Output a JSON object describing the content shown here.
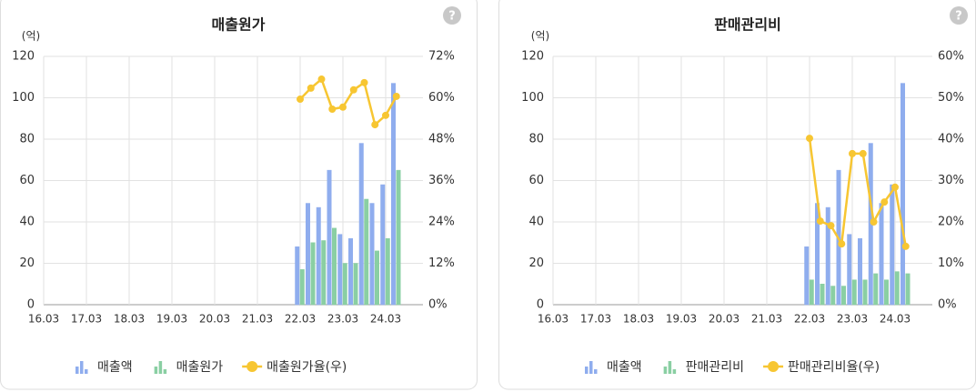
{
  "chart_data": [
    {
      "type": "bar-line",
      "title": "매출원가",
      "y_unit": "(억)",
      "categories": [
        "16.03",
        null,
        null,
        null,
        "17.03",
        null,
        null,
        null,
        "18.03",
        null,
        null,
        null,
        "19.03",
        null,
        null,
        null,
        "20.03",
        null,
        null,
        null,
        "21.03",
        null,
        null,
        null,
        "22.03",
        null,
        null,
        null,
        "23.03",
        null,
        null,
        null,
        "24.03",
        null
      ],
      "series": [
        {
          "name": "매출액",
          "color": "#8fadee",
          "kind": "bar",
          "values": [
            null,
            null,
            null,
            null,
            null,
            null,
            null,
            null,
            null,
            null,
            null,
            null,
            null,
            null,
            null,
            null,
            null,
            null,
            null,
            null,
            null,
            null,
            null,
            null,
            28,
            49,
            47,
            65,
            34,
            32,
            78,
            49,
            58,
            107
          ]
        },
        {
          "name": "매출원가",
          "color": "#8acfa3",
          "kind": "bar",
          "values": [
            null,
            null,
            null,
            null,
            null,
            null,
            null,
            null,
            null,
            null,
            null,
            null,
            null,
            null,
            null,
            null,
            null,
            null,
            null,
            null,
            null,
            null,
            null,
            null,
            17,
            30,
            31,
            37,
            20,
            20,
            51,
            26,
            32,
            65
          ]
        },
        {
          "name": "매출원가율(우)",
          "color": "#f7c632",
          "kind": "line",
          "axis": "y2",
          "values": [
            null,
            null,
            null,
            null,
            null,
            null,
            null,
            null,
            null,
            null,
            null,
            null,
            null,
            null,
            null,
            null,
            null,
            null,
            null,
            null,
            null,
            null,
            null,
            null,
            59.6,
            62.8,
            65.4,
            56.7,
            57.3,
            62.3,
            64.4,
            52.2,
            54.9,
            60.4
          ]
        }
      ],
      "ylim": [
        0,
        120
      ],
      "yticks": [
        0,
        20,
        40,
        60,
        80,
        100,
        120
      ],
      "y2lim": [
        0,
        72
      ],
      "y2ticks": [
        {
          "value": 0,
          "label": "0%"
        },
        {
          "value": 12,
          "label": "12%"
        },
        {
          "value": 24,
          "label": "24%"
        },
        {
          "value": 36,
          "label": "36%"
        },
        {
          "value": 48,
          "label": "48%"
        },
        {
          "value": 60,
          "label": "60%"
        },
        {
          "value": 72,
          "label": "72%"
        }
      ],
      "grid": true
    },
    {
      "type": "bar-line",
      "title": "판매관리비",
      "y_unit": "(억)",
      "categories": [
        "16.03",
        null,
        null,
        null,
        "17.03",
        null,
        null,
        null,
        "18.03",
        null,
        null,
        null,
        "19.03",
        null,
        null,
        null,
        "20.03",
        null,
        null,
        null,
        "21.03",
        null,
        null,
        null,
        "22.03",
        null,
        null,
        null,
        "23.03",
        null,
        null,
        null,
        "24.03",
        null
      ],
      "series": [
        {
          "name": "매출액",
          "color": "#8fadee",
          "kind": "bar",
          "values": [
            null,
            null,
            null,
            null,
            null,
            null,
            null,
            null,
            null,
            null,
            null,
            null,
            null,
            null,
            null,
            null,
            null,
            null,
            null,
            null,
            null,
            null,
            null,
            null,
            28,
            49,
            47,
            65,
            34,
            32,
            78,
            49,
            58,
            107
          ]
        },
        {
          "name": "판매관리비",
          "color": "#8acfa3",
          "kind": "bar",
          "values": [
            null,
            null,
            null,
            null,
            null,
            null,
            null,
            null,
            null,
            null,
            null,
            null,
            null,
            null,
            null,
            null,
            null,
            null,
            null,
            null,
            null,
            null,
            null,
            null,
            12,
            10,
            9,
            9,
            12,
            12,
            15,
            12,
            16,
            15
          ]
        },
        {
          "name": "판매관리비율(우)",
          "color": "#f7c632",
          "kind": "line",
          "axis": "y2",
          "values": [
            null,
            null,
            null,
            null,
            null,
            null,
            null,
            null,
            null,
            null,
            null,
            null,
            null,
            null,
            null,
            null,
            null,
            null,
            null,
            null,
            null,
            null,
            null,
            null,
            40.2,
            20.2,
            19.1,
            14.7,
            36.5,
            36.5,
            20.0,
            24.8,
            28.4,
            14.1
          ]
        }
      ],
      "ylim": [
        0,
        120
      ],
      "yticks": [
        0,
        20,
        40,
        60,
        80,
        100,
        120
      ],
      "y2lim": [
        0,
        60
      ],
      "y2ticks": [
        {
          "value": 0,
          "label": "0%"
        },
        {
          "value": 10,
          "label": "10%"
        },
        {
          "value": 20,
          "label": "20%"
        },
        {
          "value": 30,
          "label": "30%"
        },
        {
          "value": 40,
          "label": "40%"
        },
        {
          "value": 50,
          "label": "50%"
        },
        {
          "value": 60,
          "label": "60%"
        }
      ],
      "grid": true
    }
  ]
}
